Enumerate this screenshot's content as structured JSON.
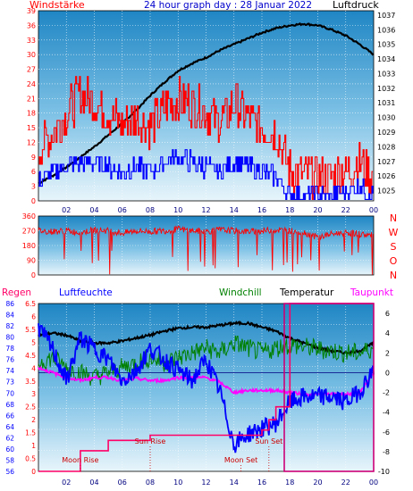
{
  "chart_data": [
    {
      "type": "line",
      "title": "24 hour graph day : 28 Januar 2022",
      "left_label": "Windstärke",
      "right_label": "Luftdruck",
      "x_ticks": [
        "02",
        "04",
        "06",
        "08",
        "10",
        "12",
        "14",
        "16",
        "18",
        "20",
        "22",
        "00"
      ],
      "y_left_ticks": [
        "0",
        "3",
        "6",
        "9",
        "12",
        "15",
        "18",
        "21",
        "24",
        "27",
        "30",
        "33",
        "36",
        "39"
      ],
      "y_right_ticks": [
        "1025",
        "1026",
        "1027",
        "1028",
        "1029",
        "1030",
        "1031",
        "1032",
        "1033",
        "1034",
        "1035",
        "1036",
        "1037"
      ],
      "ylim_left": [
        0,
        39
      ],
      "ylim_right": [
        1024.3,
        1037.3
      ],
      "grid": true,
      "series": [
        {
          "name": "Luftdruck",
          "axis": "right",
          "color": "#000000",
          "x": [
            0,
            1,
            2,
            3,
            4,
            5,
            6,
            7,
            8,
            9,
            10,
            11,
            12,
            13,
            14,
            15,
            16,
            17,
            18,
            19,
            20,
            21,
            22,
            23,
            24
          ],
          "values": [
            1025.5,
            1026.0,
            1026.6,
            1027.3,
            1028.0,
            1028.8,
            1029.6,
            1030.5,
            1031.5,
            1032.4,
            1033.2,
            1033.7,
            1034.1,
            1034.6,
            1035.0,
            1035.4,
            1035.8,
            1036.1,
            1036.3,
            1036.4,
            1036.3,
            1036.0,
            1035.6,
            1035.0,
            1034.3
          ]
        },
        {
          "name": "Wind gust",
          "axis": "left",
          "color": "#ff0000",
          "x": [
            0,
            1,
            2,
            3,
            4,
            5,
            6,
            7,
            8,
            9,
            10,
            11,
            12,
            13,
            14,
            15,
            16,
            17,
            18,
            19,
            20,
            21,
            22,
            23,
            24
          ],
          "values": [
            10,
            14,
            18,
            22,
            20,
            18,
            16,
            17,
            15,
            19,
            21,
            20,
            18,
            16,
            20,
            17,
            15,
            14,
            6,
            5,
            5,
            5,
            6,
            8,
            5
          ]
        },
        {
          "name": "Wind mean",
          "axis": "left",
          "color": "#0000ff",
          "x": [
            0,
            1,
            2,
            3,
            4,
            5,
            6,
            7,
            8,
            9,
            10,
            11,
            12,
            13,
            14,
            15,
            16,
            17,
            18,
            19,
            20,
            21,
            22,
            23,
            24
          ],
          "values": [
            4,
            6,
            7,
            8,
            8,
            7,
            6,
            7,
            6,
            8,
            9,
            8,
            7,
            6,
            8,
            7,
            6,
            5,
            1,
            1,
            1,
            1,
            2,
            3,
            1
          ]
        }
      ]
    },
    {
      "type": "scatter",
      "ylabel_letters": [
        "N",
        "W",
        "S",
        "O",
        "N"
      ],
      "y_ticks": [
        "0",
        "90",
        "180",
        "270",
        "360"
      ],
      "ylim": [
        0,
        360
      ],
      "series": [
        {
          "name": "Windrichtung",
          "color": "#ff0000",
          "x": [
            0,
            1,
            2,
            3,
            4,
            5,
            6,
            7,
            8,
            9,
            10,
            11,
            12,
            13,
            14,
            15,
            16,
            17,
            18,
            19,
            20,
            21,
            22,
            23,
            24
          ],
          "values": [
            270,
            265,
            270,
            260,
            275,
            270,
            255,
            270,
            265,
            270,
            280,
            270,
            265,
            275,
            270,
            265,
            270,
            275,
            270,
            260,
            230,
            250,
            260,
            250,
            240
          ]
        }
      ]
    },
    {
      "type": "line",
      "legend": [
        "Regen",
        "Luftfeuchte",
        "Windchill",
        "Temperatur",
        "Taupunkt"
      ],
      "y_rain_ticks": [
        "0",
        "0.5",
        "1",
        "1.5",
        "2",
        "2.5",
        "3",
        "3.5",
        "4",
        "4.5",
        "5",
        "5.5",
        "6",
        "6.5"
      ],
      "y_hum_ticks": [
        "56",
        "58",
        "60",
        "62",
        "64",
        "66",
        "68",
        "70",
        "73",
        "74",
        "76",
        "78",
        "80",
        "82",
        "84",
        "86"
      ],
      "y_temp_ticks": [
        "-10",
        "-8",
        "-6",
        "-4",
        "-2",
        "0",
        "2",
        "4",
        "6"
      ],
      "ylim_rain": [
        0,
        6.5
      ],
      "ylim_hum": [
        55,
        86.5
      ],
      "ylim_temp": [
        -10,
        7
      ],
      "annotations": [
        "Sun Rise",
        "Sun Set",
        "Moon Rise",
        "Moon Set"
      ],
      "event_times": {
        "Sun Rise": 8.0,
        "Sun Set": 16.5,
        "Moon Rise": 3.0,
        "Moon Set": 14.5
      },
      "series": [
        {
          "name": "Temperatur",
          "color": "#000000",
          "x": [
            0,
            1,
            2,
            3,
            4,
            5,
            6,
            7,
            8,
            9,
            10,
            11,
            12,
            13,
            14,
            15,
            16,
            17,
            18,
            19,
            20,
            21,
            22,
            23,
            24
          ],
          "values": [
            3.8,
            4.0,
            3.8,
            3.2,
            3.0,
            3.0,
            3.2,
            3.5,
            3.8,
            4.2,
            4.5,
            4.6,
            4.6,
            4.8,
            5.0,
            5.0,
            4.6,
            4.2,
            3.5,
            3.0,
            2.5,
            2.2,
            2.0,
            2.2,
            3.0
          ]
        },
        {
          "name": "Windchill",
          "color": "#008000",
          "x": [
            0,
            1,
            2,
            3,
            4,
            5,
            6,
            7,
            8,
            9,
            10,
            11,
            12,
            13,
            14,
            15,
            16,
            17,
            18,
            19,
            20,
            21,
            22,
            23,
            24
          ],
          "values": [
            1.0,
            1.5,
            0.5,
            0.0,
            -0.5,
            0.0,
            0.5,
            1.0,
            1.5,
            1.0,
            1.5,
            2.0,
            2.5,
            2.0,
            3.0,
            2.5,
            2.0,
            2.5,
            2.8,
            2.6,
            2.4,
            2.2,
            2.0,
            2.0,
            2.5
          ]
        },
        {
          "name": "Taupunkt",
          "color": "#ff00ff",
          "x": [
            0,
            1,
            2,
            3,
            4,
            5,
            6,
            7,
            8,
            9,
            10,
            11,
            12,
            13,
            14,
            15,
            16,
            17,
            18,
            19,
            20,
            21,
            22,
            23,
            24
          ],
          "values": [
            0.5,
            0.0,
            -0.5,
            -0.8,
            -0.5,
            -0.5,
            -0.8,
            -0.6,
            -0.8,
            -0.8,
            -0.5,
            -0.5,
            -0.5,
            -1.0,
            -2.0,
            -1.8,
            -1.8,
            -1.8,
            -2.0,
            -2.2,
            -2.2,
            -2.2,
            -2.2,
            -2.0,
            0.0
          ]
        },
        {
          "name": "Luftfeuchte",
          "color": "#0000ff",
          "x": [
            0,
            1,
            2,
            3,
            4,
            5,
            6,
            7,
            8,
            9,
            10,
            11,
            12,
            13,
            14,
            15,
            16,
            17,
            18,
            19,
            20,
            21,
            22,
            23,
            24
          ],
          "values": [
            82,
            78,
            72,
            80,
            78,
            76,
            72,
            74,
            78,
            76,
            74,
            72,
            76,
            70,
            60,
            62,
            63,
            64,
            68,
            69,
            69,
            69,
            68,
            70,
            74
          ]
        },
        {
          "name": "Regen",
          "color": "#ff0066",
          "x": [
            0,
            2,
            3,
            4,
            5,
            8,
            9,
            13,
            16,
            16.5,
            17,
            18,
            24
          ],
          "values": [
            0,
            0,
            0.8,
            0.8,
            1.2,
            1.4,
            1.4,
            1.4,
            1.6,
            2.0,
            2.5,
            6.5,
            6.5
          ]
        }
      ]
    }
  ]
}
